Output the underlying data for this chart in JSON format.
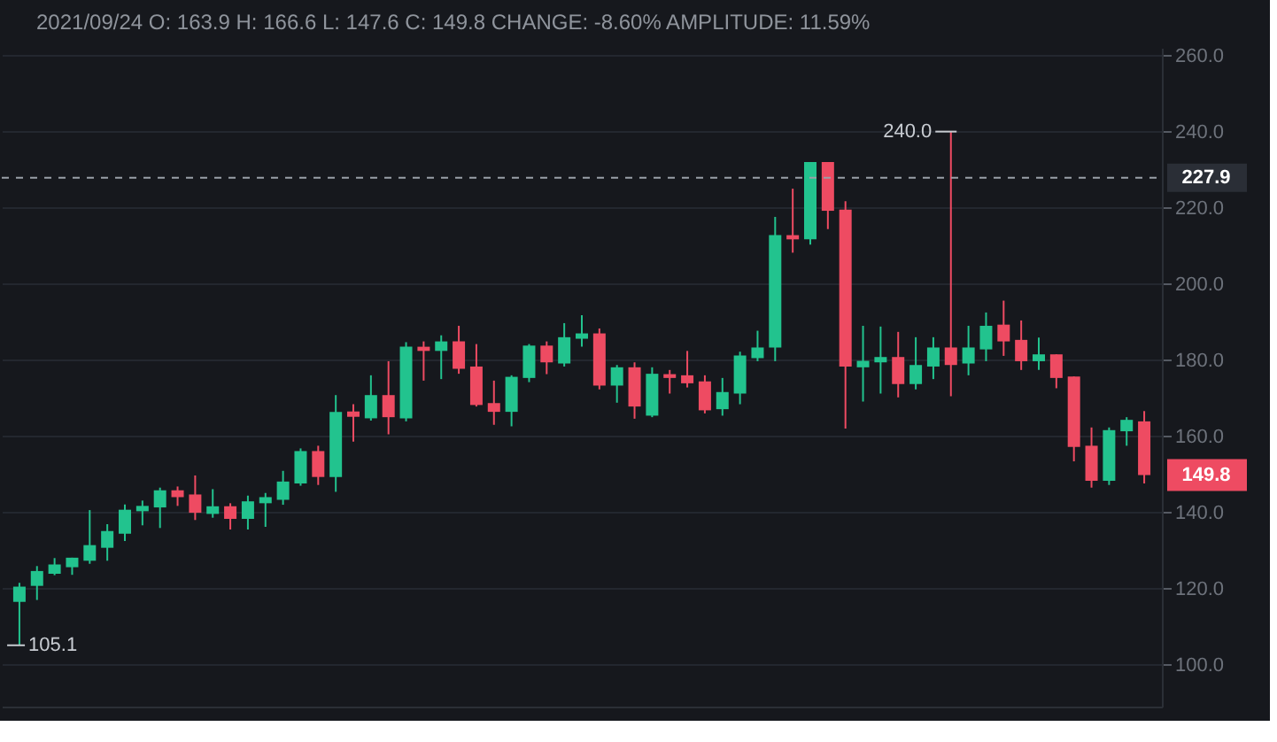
{
  "chart_data": {
    "type": "candlestick",
    "title": "2021/09/24 O: 163.9 H: 166.6 L: 147.6 C: 149.8 CHANGE: -8.60% AMPLITUDE: 11.59%",
    "categories": [
      null,
      null,
      null,
      null,
      null,
      null,
      null,
      null,
      null,
      null,
      null,
      null,
      null,
      null,
      null,
      null,
      null,
      null,
      null,
      null,
      null,
      null,
      null,
      null,
      null,
      null,
      null,
      null,
      null,
      null,
      null,
      null,
      null,
      null,
      null,
      null,
      null,
      null,
      null,
      null,
      null,
      null,
      null,
      null,
      null,
      null,
      null,
      null,
      null,
      null,
      null,
      null,
      null,
      null,
      null,
      null,
      null,
      null,
      null,
      null,
      null,
      null,
      null,
      null,
      null
    ],
    "ohlc": [
      [
        116.5,
        121.5,
        105.1,
        120.5
      ],
      [
        120.7,
        125.9,
        117.0,
        124.6
      ],
      [
        123.9,
        128.0,
        123.5,
        126.3
      ],
      [
        125.6,
        128.1,
        123.6,
        128.1
      ],
      [
        127.3,
        140.6,
        126.5,
        131.4
      ],
      [
        130.7,
        136.9,
        127.3,
        135.1
      ],
      [
        134.4,
        142.1,
        132.5,
        140.7
      ],
      [
        140.3,
        143.1,
        136.6,
        141.7
      ],
      [
        141.3,
        146.5,
        135.9,
        145.8
      ],
      [
        145.8,
        146.8,
        141.7,
        144.0
      ],
      [
        144.7,
        149.7,
        138.0,
        139.9
      ],
      [
        139.6,
        146.1,
        138.6,
        141.6
      ],
      [
        141.6,
        142.4,
        135.5,
        138.3
      ],
      [
        138.3,
        144.4,
        135.5,
        142.9
      ],
      [
        142.4,
        145.1,
        136.2,
        144.0
      ],
      [
        143.3,
        150.9,
        142.0,
        148.1
      ],
      [
        147.6,
        156.8,
        147.0,
        156.1
      ],
      [
        156.1,
        157.5,
        147.2,
        149.3
      ],
      [
        149.3,
        170.8,
        145.4,
        166.4
      ],
      [
        166.5,
        168.4,
        158.6,
        165.1
      ],
      [
        164.7,
        176.0,
        164.1,
        170.8
      ],
      [
        170.8,
        179.7,
        160.5,
        165.0
      ],
      [
        164.7,
        184.7,
        163.9,
        183.5
      ],
      [
        183.5,
        184.9,
        174.6,
        182.4
      ],
      [
        182.4,
        186.5,
        175.0,
        184.9
      ],
      [
        184.9,
        189.0,
        176.4,
        177.7
      ],
      [
        178.3,
        184.2,
        167.8,
        168.2
      ],
      [
        168.7,
        174.6,
        163.0,
        166.4
      ],
      [
        166.4,
        176.0,
        162.6,
        175.6
      ],
      [
        175.3,
        184.2,
        174.2,
        183.8
      ],
      [
        183.8,
        184.9,
        176.3,
        179.4
      ],
      [
        179.1,
        189.7,
        178.3,
        186.0
      ],
      [
        185.6,
        191.8,
        183.5,
        187.0
      ],
      [
        187.0,
        188.3,
        172.3,
        173.3
      ],
      [
        173.3,
        178.7,
        168.8,
        178.1
      ],
      [
        178.1,
        179.4,
        164.6,
        167.8
      ],
      [
        165.4,
        178.1,
        165.0,
        176.4
      ],
      [
        176.3,
        177.4,
        171.2,
        175.3
      ],
      [
        176.0,
        182.4,
        172.8,
        173.9
      ],
      [
        174.4,
        176.0,
        166.0,
        166.8
      ],
      [
        167.1,
        175.3,
        165.4,
        171.6
      ],
      [
        171.2,
        182.2,
        168.4,
        181.2
      ],
      [
        180.5,
        187.7,
        179.7,
        183.3
      ],
      [
        183.3,
        217.6,
        179.7,
        212.8
      ],
      [
        212.8,
        225.0,
        208.2,
        211.7
      ],
      [
        211.7,
        232.0,
        210.3,
        232.0
      ],
      [
        232.0,
        232.0,
        214.4,
        219.2
      ],
      [
        219.5,
        221.7,
        162.0,
        178.3
      ],
      [
        178.1,
        189.0,
        169.1,
        179.8
      ],
      [
        179.4,
        188.8,
        171.2,
        180.8
      ],
      [
        180.8,
        187.4,
        170.2,
        173.7
      ],
      [
        173.7,
        186.0,
        172.3,
        178.7
      ],
      [
        178.3,
        186.0,
        175.0,
        183.3
      ],
      [
        183.3,
        240.0,
        170.5,
        178.7
      ],
      [
        179.1,
        189.0,
        176.0,
        183.3
      ],
      [
        182.8,
        192.5,
        179.7,
        189.0
      ],
      [
        189.3,
        195.6,
        181.1,
        184.9
      ],
      [
        185.3,
        190.4,
        177.4,
        179.7
      ],
      [
        179.7,
        185.9,
        177.4,
        181.5
      ],
      [
        181.5,
        181.5,
        172.6,
        175.3
      ],
      [
        175.7,
        175.7,
        153.4,
        157.2
      ],
      [
        157.5,
        162.3,
        146.5,
        148.3
      ],
      [
        148.3,
        162.3,
        147.2,
        161.6
      ],
      [
        161.3,
        165.0,
        157.5,
        164.3
      ],
      [
        163.9,
        166.6,
        147.6,
        149.8
      ]
    ],
    "colors": [
      "#22c38e",
      "#22c38e",
      "#22c38e",
      "#22c38e",
      "#22c38e",
      "#22c38e",
      "#22c38e",
      "#22c38e",
      "#22c38e",
      "#ee4b62",
      "#ee4b62",
      "#22c38e",
      "#ee4b62",
      "#22c38e",
      "#22c38e",
      "#22c38e",
      "#22c38e",
      "#ee4b62",
      "#22c38e",
      "#ee4b62",
      "#22c38e",
      "#ee4b62",
      "#22c38e",
      "#ee4b62",
      "#22c38e",
      "#ee4b62",
      "#ee4b62",
      "#ee4b62",
      "#22c38e",
      "#22c38e",
      "#ee4b62",
      "#22c38e",
      "#22c38e",
      "#ee4b62",
      "#22c38e",
      "#ee4b62",
      "#22c38e",
      "#ee4b62",
      "#ee4b62",
      "#ee4b62",
      "#22c38e",
      "#22c38e",
      "#22c38e",
      "#22c38e",
      "#ee4b62",
      "#22c38e",
      "#ee4b62",
      "#ee4b62",
      "#22c38e",
      "#22c38e",
      "#ee4b62",
      "#22c38e",
      "#22c38e",
      "#ee4b62",
      "#22c38e",
      "#22c38e",
      "#ee4b62",
      "#ee4b62",
      "#22c38e",
      "#ee4b62",
      "#ee4b62",
      "#ee4b62",
      "#22c38e",
      "#22c38e",
      "#ee4b62"
    ],
    "ylim": [
      89,
      262
    ],
    "yticks": [
      {
        "value": 100,
        "label": "100.0"
      },
      {
        "value": 120,
        "label": "120.0"
      },
      {
        "value": 140,
        "label": "140.0"
      },
      {
        "value": 160,
        "label": "160.0"
      },
      {
        "value": 180,
        "label": "180.0"
      },
      {
        "value": 200,
        "label": "200.0"
      },
      {
        "value": 220,
        "label": "220.0"
      },
      {
        "value": 240,
        "label": "240.0"
      },
      {
        "value": 260,
        "label": "260.0"
      }
    ],
    "tick_labels": "y",
    "grid": "y",
    "ref_lines": [
      {
        "axis": "y",
        "value": 227.9,
        "label": "227.9",
        "color": "#9aa0a8",
        "line_style": "dashed"
      }
    ],
    "annotations": [
      "240.0",
      "105.1",
      "149.8"
    ]
  }
}
